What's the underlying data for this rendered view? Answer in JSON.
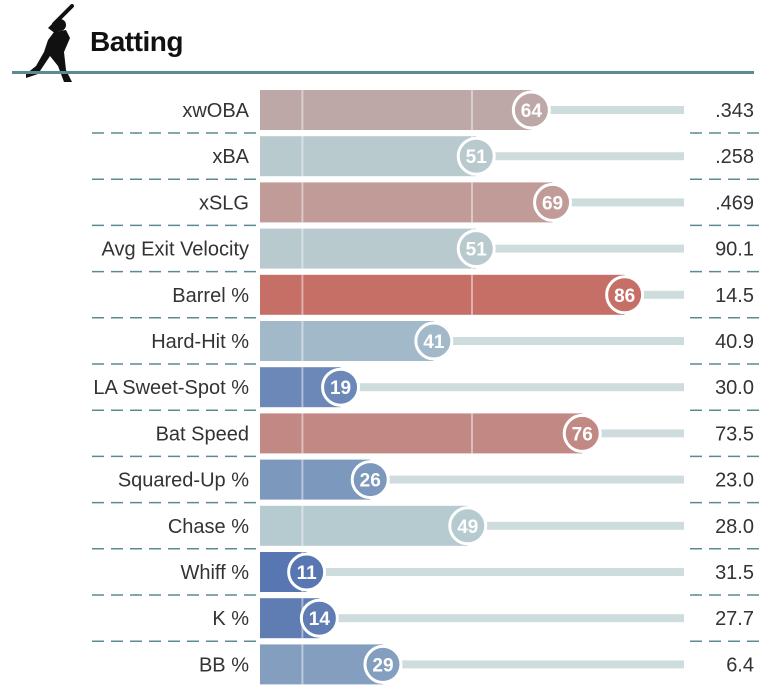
{
  "header": {
    "title": "Batting",
    "icon": "batter-silhouette-icon"
  },
  "chart_data": {
    "type": "bar",
    "orientation": "horizontal",
    "title": "Batting",
    "xlim": [
      0,
      100
    ],
    "reference_lines": [
      10,
      50,
      90
    ],
    "categories": [
      "xwOBA",
      "xBA",
      "xSLG",
      "Avg Exit Velocity",
      "Barrel %",
      "Hard-Hit %",
      "LA Sweet-Spot %",
      "Bat Speed",
      "Squared-Up %",
      "Chase %",
      "Whiff %",
      "K %",
      "BB %"
    ],
    "series": [
      {
        "values": [
          64,
          51,
          69,
          51,
          86,
          41,
          19,
          76,
          26,
          49,
          11,
          14,
          29
        ]
      }
    ],
    "stat_values": [
      ".343",
      ".258",
      ".469",
      "90.1",
      "14.5",
      "40.9",
      "30.0",
      "73.5",
      "23.0",
      "28.0",
      "31.5",
      "27.7",
      "6.4"
    ],
    "colors": {
      "low": "#3d5ea8",
      "mid": "#b8cdd1",
      "high": "#cc4a3c",
      "track": "#cfdcdd",
      "separator": "#5b8a91"
    }
  }
}
